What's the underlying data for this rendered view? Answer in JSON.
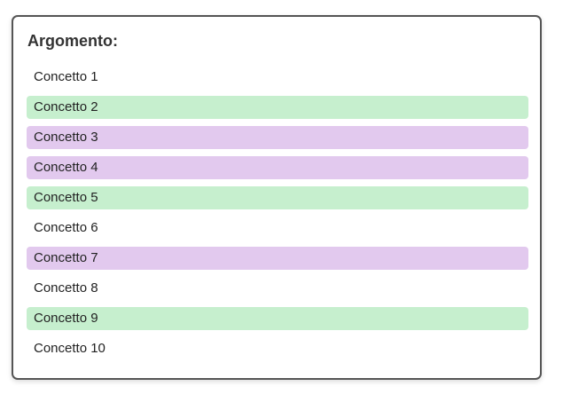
{
  "title": "Argomento:",
  "colors": {
    "green": "#c6efce",
    "purple": "#e2c9ee"
  },
  "items": [
    {
      "label": "Concetto 1",
      "highlight": "none"
    },
    {
      "label": "Concetto 2",
      "highlight": "green"
    },
    {
      "label": "Concetto 3",
      "highlight": "purple"
    },
    {
      "label": "Concetto 4",
      "highlight": "purple"
    },
    {
      "label": "Concetto 5",
      "highlight": "green"
    },
    {
      "label": "Concetto 6",
      "highlight": "none"
    },
    {
      "label": "Concetto 7",
      "highlight": "purple"
    },
    {
      "label": "Concetto 8",
      "highlight": "none"
    },
    {
      "label": "Concetto 9",
      "highlight": "green"
    },
    {
      "label": "Concetto 10",
      "highlight": "none"
    }
  ]
}
